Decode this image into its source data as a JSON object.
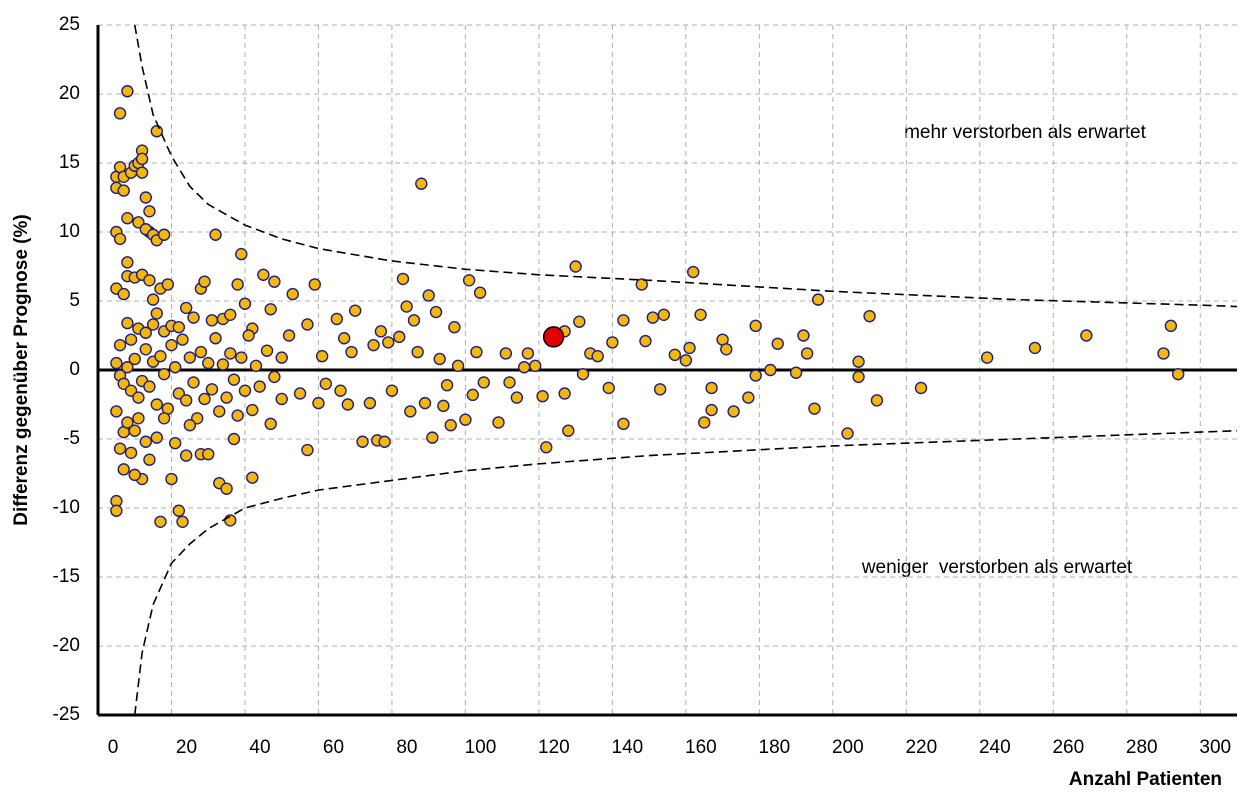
{
  "chart_data": {
    "type": "scatter",
    "x_label": "Anzahl Patienten",
    "y_label": "Differenz gegenüber Prognose (%)",
    "annotations": [
      "mehr verstorben als erwartet",
      "weniger  verstorben als erwartet"
    ],
    "xlim": [
      0,
      310
    ],
    "ylim": [
      -25,
      25
    ],
    "xticks": [
      0,
      20,
      40,
      60,
      80,
      100,
      120,
      140,
      160,
      180,
      200,
      220,
      240,
      260,
      280,
      300
    ],
    "yticks": [
      -25,
      -20,
      -15,
      -10,
      -5,
      0,
      5,
      10,
      15,
      20,
      25
    ],
    "grid": true,
    "hline": 0,
    "series": [
      {
        "type": "scatter",
        "color": "#f5b800",
        "edge": "#1c1c8c",
        "x": [
          5,
          5,
          6,
          6,
          7,
          7,
          8,
          8,
          9,
          10,
          11,
          12,
          12,
          12,
          13,
          14,
          14,
          16,
          5,
          6,
          8,
          8,
          10,
          11,
          13,
          15,
          16,
          18,
          5,
          7,
          12,
          14,
          15,
          17,
          19,
          6,
          8,
          9,
          11,
          13,
          15,
          16,
          18,
          20,
          22,
          24,
          26,
          28,
          29,
          31,
          32,
          34,
          36,
          38,
          39,
          40,
          42,
          45,
          47,
          48,
          5,
          6,
          7,
          8,
          9,
          10,
          11,
          12,
          13,
          14,
          15,
          16,
          17,
          18,
          19,
          20,
          21,
          22,
          23,
          24,
          25,
          26,
          27,
          28,
          29,
          30,
          31,
          32,
          33,
          34,
          35,
          36,
          37,
          38,
          39,
          40,
          41,
          42,
          43,
          44,
          46,
          48,
          50,
          5,
          6,
          7,
          8,
          9,
          10,
          11,
          12,
          13,
          14,
          16,
          18,
          20,
          21,
          22,
          23,
          17,
          24,
          25,
          28,
          30,
          33,
          35,
          36,
          37,
          42,
          5,
          5,
          7,
          10,
          47,
          50,
          52,
          53,
          55,
          57,
          57,
          59,
          60,
          61,
          62,
          65,
          66,
          67,
          68,
          69,
          70,
          72,
          74,
          75,
          76,
          77,
          78,
          79,
          80,
          82,
          83,
          84,
          85,
          86,
          87,
          88,
          89,
          90,
          91,
          92,
          93,
          94,
          95,
          96,
          97,
          98,
          100,
          101,
          102,
          103,
          104,
          105,
          109,
          111,
          112,
          114,
          116,
          117,
          119,
          121,
          122,
          127,
          127,
          128,
          130,
          131,
          132,
          134,
          136,
          139,
          140,
          143,
          143,
          148,
          149,
          151,
          153,
          154,
          157,
          160,
          161,
          162,
          164,
          165,
          167,
          167,
          170,
          171,
          173,
          177,
          179,
          179,
          183,
          185,
          190,
          192,
          193,
          195,
          196,
          204,
          207,
          207,
          210,
          212,
          224,
          242,
          255,
          269,
          290,
          292,
          294
        ],
        "values": [
          14,
          13.2,
          14.7,
          18.6,
          13,
          14,
          20.2,
          11,
          14.3,
          14.8,
          15,
          15.9,
          15.3,
          14.3,
          12.5,
          11.5,
          10,
          17.3,
          10,
          9.5,
          7.8,
          6.8,
          6.7,
          10.7,
          10.2,
          9.8,
          9.4,
          9.8,
          5.9,
          5.5,
          6.9,
          6.5,
          5.1,
          5.9,
          6.2,
          1.8,
          3.4,
          2.2,
          3,
          2.7,
          3.3,
          4.1,
          2.8,
          3.2,
          3.1,
          4.5,
          3.8,
          5.9,
          6.4,
          3.6,
          9.8,
          3.7,
          4,
          6.2,
          8.4,
          4.8,
          3,
          6.9,
          4.4,
          6.4,
          0.5,
          -0.4,
          -1,
          0.2,
          -1.5,
          0.8,
          -2,
          -0.8,
          1.5,
          -1.2,
          0.6,
          -2.5,
          1,
          -0.3,
          -2.8,
          1.8,
          0.2,
          -1.7,
          2.2,
          -2.2,
          0.9,
          -0.9,
          -3.5,
          1.3,
          -2.1,
          0.5,
          -1.4,
          2.3,
          -3,
          0.4,
          -2,
          1.2,
          -0.7,
          -3.3,
          0.9,
          -1.5,
          2.5,
          -2.9,
          0.3,
          -1.2,
          1.4,
          -0.5,
          0.9,
          -3,
          -5.7,
          -4.5,
          -3.8,
          -6,
          -4.4,
          -3.5,
          -7.9,
          -5.2,
          -6.5,
          -4.9,
          -3.5,
          -7.9,
          -5.3,
          -10.2,
          -11,
          -11,
          -6.2,
          -4,
          -6.1,
          -6.1,
          -8.2,
          -8.6,
          -10.9,
          -5,
          -7.8,
          -9.5,
          -10.2,
          -7.2,
          -7.6,
          -3.9,
          -2.1,
          2.5,
          5.5,
          -1.7,
          3.3,
          -5.8,
          6.2,
          -2.4,
          1,
          -1,
          3.7,
          -1.5,
          2.3,
          -2.5,
          1.3,
          4.3,
          -5.2,
          -2.4,
          1.8,
          -5.1,
          2.8,
          -5.2,
          2,
          -1.5,
          2.4,
          6.6,
          4.6,
          -3,
          3.6,
          1.3,
          13.5,
          -2.4,
          5.4,
          -4.9,
          4.2,
          0.8,
          -2.6,
          -1.1,
          -4,
          3.1,
          0.3,
          -3.6,
          6.5,
          -1.8,
          1.3,
          5.6,
          -0.9,
          -3.8,
          1.2,
          -0.9,
          -2,
          0.2,
          1.2,
          0.3,
          -1.9,
          -5.6,
          2.8,
          -1.7,
          -4.4,
          7.5,
          3.5,
          -0.3,
          1.2,
          1,
          -1.3,
          2,
          3.6,
          -3.9,
          6.2,
          2.1,
          3.8,
          -1.4,
          4,
          1.1,
          0.7,
          1.6,
          7.1,
          4,
          -3.8,
          -2.9,
          -1.3,
          2.2,
          1.5,
          -3,
          -2,
          3.2,
          -0.4,
          0,
          1.9,
          -0.2,
          2.5,
          1.2,
          -2.8,
          5.1,
          -4.6,
          0.6,
          -0.5,
          3.9,
          -2.2,
          -1.3,
          0.9,
          1.6,
          2.5,
          1.2,
          3.2,
          -0.3
        ]
      },
      {
        "type": "scatter",
        "color": "#e00000",
        "edge": "#000000",
        "size": 10,
        "x": [
          124
        ],
        "values": [
          2.4
        ]
      },
      {
        "type": "line",
        "color": "#000000",
        "x": [
          10,
          12,
          15,
          20,
          25,
          30,
          40,
          50,
          60,
          80,
          100,
          120,
          150,
          200,
          250,
          300,
          310
        ],
        "values": [
          25,
          22,
          18.5,
          15.5,
          13.3,
          12,
          10.5,
          9.5,
          8.8,
          7.9,
          7.3,
          6.9,
          6.5,
          5.7,
          5.1,
          4.7,
          4.6
        ]
      },
      {
        "type": "line",
        "color": "#000000",
        "x": [
          10,
          12,
          15,
          20,
          25,
          30,
          40,
          50,
          60,
          80,
          100,
          120,
          150,
          200,
          250,
          300,
          310
        ],
        "values": [
          -25,
          -20.5,
          -17,
          -14,
          -12.6,
          -11.5,
          -10,
          -9.3,
          -8.7,
          -8,
          -7.3,
          -6.8,
          -6.2,
          -5.5,
          -5,
          -4.5,
          -4.4
        ]
      }
    ]
  }
}
